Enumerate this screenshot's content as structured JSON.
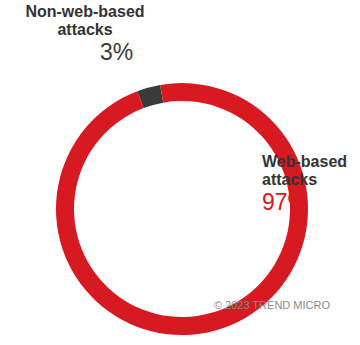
{
  "chart_data": {
    "type": "pie",
    "categories": [
      "Non-web-based attacks",
      "Web-based attacks"
    ],
    "values": [
      3,
      97
    ],
    "value_labels": [
      "3%",
      "97%"
    ],
    "data_labels": true,
    "colors": [
      "#3a3a3a",
      "#d71a21"
    ],
    "annotations": [
      "© 2023 TREND MICRO"
    ]
  }
}
